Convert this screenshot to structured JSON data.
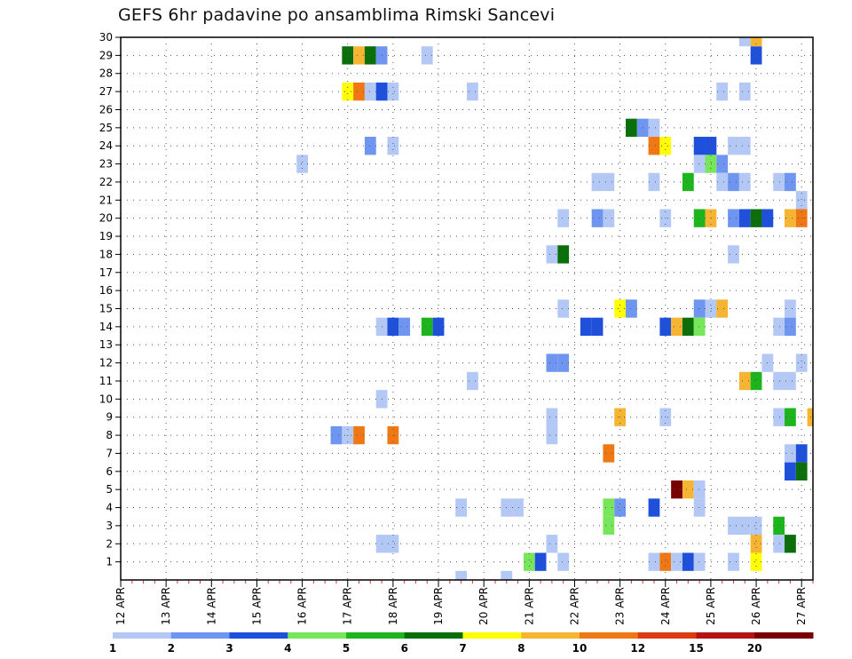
{
  "chart_data": {
    "type": "heatmap",
    "title": "GEFS 6hr padavine po ansamblima Rimski Sancevi",
    "y_ticks": [
      "1",
      "2",
      "3",
      "4",
      "5",
      "6",
      "7",
      "8",
      "9",
      "10",
      "11",
      "12",
      "13",
      "14",
      "15",
      "16",
      "17",
      "18",
      "19",
      "20",
      "21",
      "22",
      "23",
      "24",
      "25",
      "26",
      "27",
      "28",
      "29",
      "30"
    ],
    "x_ticks": [
      "12 APR",
      "13 APR",
      "14 APR",
      "15 APR",
      "16 APR",
      "17 APR",
      "18 APR",
      "19 APR",
      "20 APR",
      "21 APR",
      "22 APR",
      "23 APR",
      "24 APR",
      "25 APR",
      "26 APR",
      "27 APR"
    ],
    "x_range": [
      0,
      61
    ],
    "y_range": [
      0,
      30
    ],
    "grid": true,
    "color_levels": [
      {
        "color": "#b4c8f5",
        "label": "1"
      },
      {
        "color": "#6e96f0",
        "label": "2"
      },
      {
        "color": "#1e50dc",
        "label": "3"
      },
      {
        "color": "#78e65a",
        "label": "4"
      },
      {
        "color": "#1eb41e",
        "label": "5"
      },
      {
        "color": "#0a6e0a",
        "label": "6"
      },
      {
        "color": "#ffff00",
        "label": "7"
      },
      {
        "color": "#f5b432",
        "label": "8"
      },
      {
        "color": "#f07814",
        "label": "10"
      },
      {
        "color": "#dc3c14",
        "label": "12"
      },
      {
        "color": "#b41414",
        "label": "15"
      },
      {
        "color": "#780000",
        "label": "20"
      }
    ],
    "cells": [
      {
        "t": 20,
        "m": 29,
        "l": 5
      },
      {
        "t": 21,
        "m": 29,
        "l": 7
      },
      {
        "t": 22,
        "m": 29,
        "l": 5
      },
      {
        "t": 23,
        "m": 29,
        "l": 1
      },
      {
        "t": 27,
        "m": 29,
        "l": 0
      },
      {
        "t": 56,
        "m": 29,
        "l": 2
      },
      {
        "t": 55,
        "m": 30,
        "l": 0
      },
      {
        "t": 56,
        "m": 30,
        "l": 7
      },
      {
        "t": 20,
        "m": 27,
        "l": 6
      },
      {
        "t": 21,
        "m": 27,
        "l": 8
      },
      {
        "t": 22,
        "m": 27,
        "l": 0
      },
      {
        "t": 23,
        "m": 27,
        "l": 2
      },
      {
        "t": 24,
        "m": 27,
        "l": 0
      },
      {
        "t": 31,
        "m": 27,
        "l": 0
      },
      {
        "t": 53,
        "m": 27,
        "l": 0
      },
      {
        "t": 55,
        "m": 27,
        "l": 0
      },
      {
        "t": 45,
        "m": 25,
        "l": 5
      },
      {
        "t": 46,
        "m": 25,
        "l": 1
      },
      {
        "t": 47,
        "m": 25,
        "l": 0
      },
      {
        "t": 22,
        "m": 24,
        "l": 1
      },
      {
        "t": 24,
        "m": 24,
        "l": 0
      },
      {
        "t": 47,
        "m": 24,
        "l": 8
      },
      {
        "t": 48,
        "m": 24,
        "l": 6
      },
      {
        "t": 51,
        "m": 24,
        "l": 2
      },
      {
        "t": 52,
        "m": 24,
        "l": 2
      },
      {
        "t": 54,
        "m": 24,
        "l": 0
      },
      {
        "t": 55,
        "m": 24,
        "l": 0
      },
      {
        "t": 16,
        "m": 23,
        "l": 0
      },
      {
        "t": 51,
        "m": 23,
        "l": 0
      },
      {
        "t": 52,
        "m": 23,
        "l": 3
      },
      {
        "t": 53,
        "m": 23,
        "l": 1
      },
      {
        "t": 42,
        "m": 22,
        "l": 0
      },
      {
        "t": 43,
        "m": 22,
        "l": 0
      },
      {
        "t": 47,
        "m": 22,
        "l": 0
      },
      {
        "t": 50,
        "m": 22,
        "l": 4
      },
      {
        "t": 53,
        "m": 22,
        "l": 0
      },
      {
        "t": 54,
        "m": 22,
        "l": 1
      },
      {
        "t": 55,
        "m": 22,
        "l": 0
      },
      {
        "t": 58,
        "m": 22,
        "l": 0
      },
      {
        "t": 59,
        "m": 22,
        "l": 1
      },
      {
        "t": 60,
        "m": 21,
        "l": 0
      },
      {
        "t": 39,
        "m": 20,
        "l": 0
      },
      {
        "t": 42,
        "m": 20,
        "l": 1
      },
      {
        "t": 43,
        "m": 20,
        "l": 0
      },
      {
        "t": 48,
        "m": 20,
        "l": 0
      },
      {
        "t": 51,
        "m": 20,
        "l": 4
      },
      {
        "t": 52,
        "m": 20,
        "l": 7
      },
      {
        "t": 54,
        "m": 20,
        "l": 1
      },
      {
        "t": 55,
        "m": 20,
        "l": 2
      },
      {
        "t": 56,
        "m": 20,
        "l": 5
      },
      {
        "t": 57,
        "m": 20,
        "l": 2
      },
      {
        "t": 59,
        "m": 20,
        "l": 7
      },
      {
        "t": 60,
        "m": 20,
        "l": 8
      },
      {
        "t": 38,
        "m": 18,
        "l": 0
      },
      {
        "t": 39,
        "m": 18,
        "l": 5
      },
      {
        "t": 54,
        "m": 18,
        "l": 0
      },
      {
        "t": 39,
        "m": 15,
        "l": 0
      },
      {
        "t": 44,
        "m": 15,
        "l": 6
      },
      {
        "t": 45,
        "m": 15,
        "l": 1
      },
      {
        "t": 51,
        "m": 15,
        "l": 1
      },
      {
        "t": 52,
        "m": 15,
        "l": 0
      },
      {
        "t": 53,
        "m": 15,
        "l": 7
      },
      {
        "t": 59,
        "m": 15,
        "l": 0
      },
      {
        "t": 23,
        "m": 14,
        "l": 0
      },
      {
        "t": 24,
        "m": 14,
        "l": 2
      },
      {
        "t": 25,
        "m": 14,
        "l": 1
      },
      {
        "t": 27,
        "m": 14,
        "l": 4
      },
      {
        "t": 28,
        "m": 14,
        "l": 2
      },
      {
        "t": 41,
        "m": 14,
        "l": 2
      },
      {
        "t": 42,
        "m": 14,
        "l": 2
      },
      {
        "t": 48,
        "m": 14,
        "l": 2
      },
      {
        "t": 49,
        "m": 14,
        "l": 7
      },
      {
        "t": 50,
        "m": 14,
        "l": 5
      },
      {
        "t": 51,
        "m": 14,
        "l": 3
      },
      {
        "t": 58,
        "m": 14,
        "l": 0
      },
      {
        "t": 59,
        "m": 14,
        "l": 1
      },
      {
        "t": 38,
        "m": 12,
        "l": 1
      },
      {
        "t": 39,
        "m": 12,
        "l": 1
      },
      {
        "t": 57,
        "m": 12,
        "l": 0
      },
      {
        "t": 60,
        "m": 12,
        "l": 0
      },
      {
        "t": 31,
        "m": 11,
        "l": 0
      },
      {
        "t": 55,
        "m": 11,
        "l": 7
      },
      {
        "t": 56,
        "m": 11,
        "l": 4
      },
      {
        "t": 58,
        "m": 11,
        "l": 0
      },
      {
        "t": 59,
        "m": 11,
        "l": 0
      },
      {
        "t": 23,
        "m": 10,
        "l": 0
      },
      {
        "t": 38,
        "m": 9,
        "l": 0
      },
      {
        "t": 44,
        "m": 9,
        "l": 7
      },
      {
        "t": 48,
        "m": 9,
        "l": 0
      },
      {
        "t": 58,
        "m": 9,
        "l": 0
      },
      {
        "t": 59,
        "m": 9,
        "l": 4
      },
      {
        "t": 61,
        "m": 9,
        "l": 7
      },
      {
        "t": 19,
        "m": 8,
        "l": 1
      },
      {
        "t": 20,
        "m": 8,
        "l": 0
      },
      {
        "t": 21,
        "m": 8,
        "l": 8
      },
      {
        "t": 24,
        "m": 8,
        "l": 8
      },
      {
        "t": 38,
        "m": 8,
        "l": 0
      },
      {
        "t": 43,
        "m": 7,
        "l": 8
      },
      {
        "t": 59,
        "m": 7,
        "l": 0
      },
      {
        "t": 60,
        "m": 7,
        "l": 2
      },
      {
        "t": 59,
        "m": 6,
        "l": 2
      },
      {
        "t": 60,
        "m": 6,
        "l": 5
      },
      {
        "t": 49,
        "m": 5,
        "l": 11
      },
      {
        "t": 50,
        "m": 5,
        "l": 7
      },
      {
        "t": 51,
        "m": 5,
        "l": 0
      },
      {
        "t": 30,
        "m": 4,
        "l": 0
      },
      {
        "t": 34,
        "m": 4,
        "l": 0
      },
      {
        "t": 35,
        "m": 4,
        "l": 0
      },
      {
        "t": 43,
        "m": 4,
        "l": 3
      },
      {
        "t": 44,
        "m": 4,
        "l": 1
      },
      {
        "t": 47,
        "m": 4,
        "l": 2
      },
      {
        "t": 51,
        "m": 4,
        "l": 0
      },
      {
        "t": 43,
        "m": 3,
        "l": 3
      },
      {
        "t": 54,
        "m": 3,
        "l": 0
      },
      {
        "t": 55,
        "m": 3,
        "l": 0
      },
      {
        "t": 56,
        "m": 3,
        "l": 0
      },
      {
        "t": 58,
        "m": 3,
        "l": 4
      },
      {
        "t": 23,
        "m": 2,
        "l": 0
      },
      {
        "t": 24,
        "m": 2,
        "l": 0
      },
      {
        "t": 38,
        "m": 2,
        "l": 0
      },
      {
        "t": 56,
        "m": 2,
        "l": 7
      },
      {
        "t": 58,
        "m": 2,
        "l": 0
      },
      {
        "t": 59,
        "m": 2,
        "l": 5
      },
      {
        "t": 36,
        "m": 1,
        "l": 3
      },
      {
        "t": 37,
        "m": 1,
        "l": 2
      },
      {
        "t": 39,
        "m": 1,
        "l": 0
      },
      {
        "t": 47,
        "m": 1,
        "l": 0
      },
      {
        "t": 48,
        "m": 1,
        "l": 8
      },
      {
        "t": 49,
        "m": 1,
        "l": 0
      },
      {
        "t": 50,
        "m": 1,
        "l": 2
      },
      {
        "t": 51,
        "m": 1,
        "l": 0
      },
      {
        "t": 54,
        "m": 1,
        "l": 0
      },
      {
        "t": 56,
        "m": 1,
        "l": 6
      },
      {
        "t": 30,
        "m": 0,
        "l": 0
      },
      {
        "t": 34,
        "m": 0,
        "l": 0
      }
    ]
  }
}
